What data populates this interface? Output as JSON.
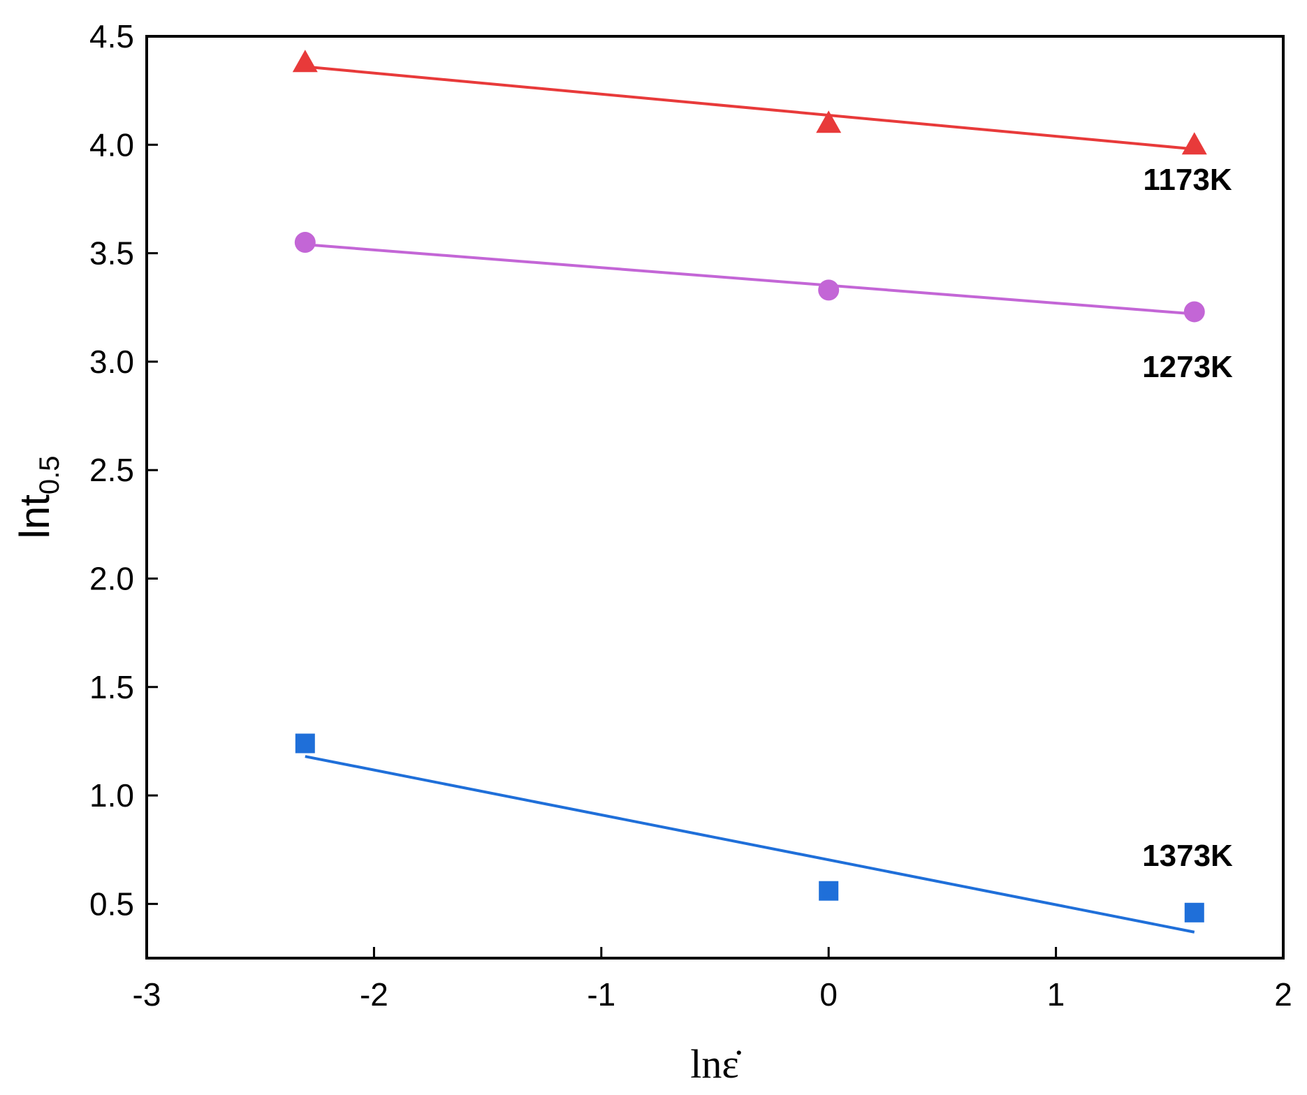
{
  "chart_data": {
    "type": "scatter",
    "xlabel": "lnε̇",
    "ylabel": {
      "main": "lnt",
      "sub": "0.5"
    },
    "xlim": [
      -3,
      2
    ],
    "ylim": [
      0.25,
      4.5
    ],
    "xticks": [
      -3,
      -2,
      -1,
      0,
      1,
      2
    ],
    "yticks": [
      0.5,
      1.0,
      1.5,
      2.0,
      2.5,
      3.0,
      3.5,
      4.0,
      4.5
    ],
    "xtick_labels": [
      "-3",
      "-2",
      "-1",
      "0",
      "1",
      "2"
    ],
    "ytick_labels": [
      "0.5",
      "1.0",
      "1.5",
      "2.0",
      "2.5",
      "3.0",
      "3.5",
      "4.0",
      "4.5"
    ],
    "grid": false,
    "legend": "none",
    "series": [
      {
        "name": "1173K",
        "marker": "triangle",
        "color": "#e83a3a",
        "x": [
          -2.303,
          0,
          1.609
        ],
        "y": [
          4.38,
          4.1,
          4.0
        ],
        "fit": {
          "x": [
            -2.303,
            1.609
          ],
          "y": [
            4.36,
            3.98
          ]
        }
      },
      {
        "name": "1273K",
        "marker": "circle",
        "color": "#c366d6",
        "x": [
          -2.303,
          0,
          1.609
        ],
        "y": [
          3.55,
          3.33,
          3.23
        ],
        "fit": {
          "x": [
            -2.303,
            1.609
          ],
          "y": [
            3.54,
            3.22
          ]
        }
      },
      {
        "name": "1373K",
        "marker": "square",
        "color": "#1f6fd9",
        "x": [
          -2.303,
          0,
          1.609
        ],
        "y": [
          1.24,
          0.56,
          0.46
        ],
        "fit": {
          "x": [
            -2.303,
            1.609
          ],
          "y": [
            1.18,
            0.37
          ]
        }
      }
    ],
    "annotations": [
      "1173K",
      "1273K",
      "1373K"
    ]
  }
}
